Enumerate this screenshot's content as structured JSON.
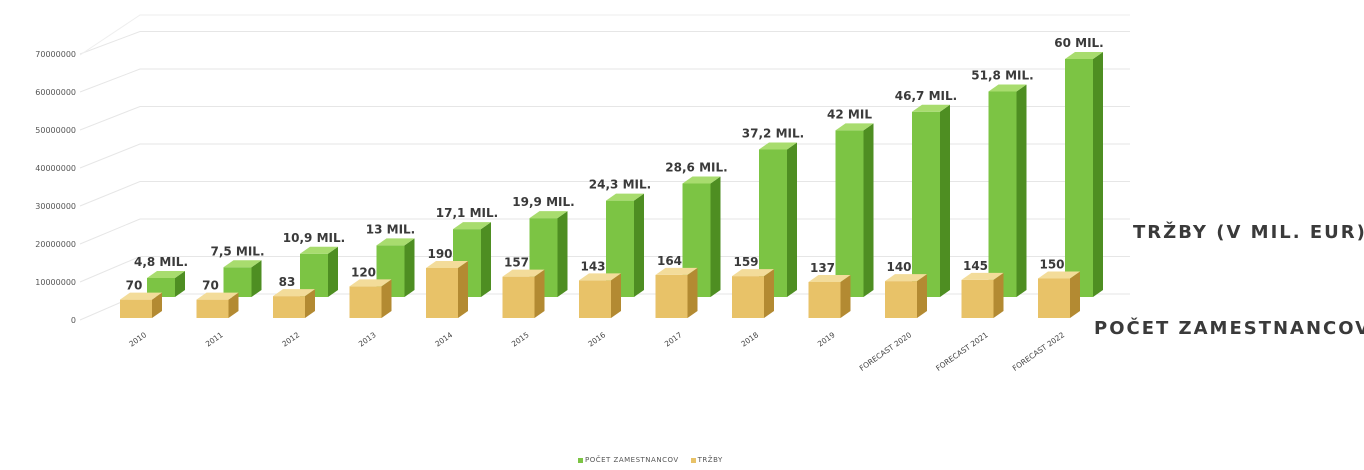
{
  "chart_data": {
    "type": "bar",
    "categories": [
      "2010",
      "2011",
      "2012",
      "2013",
      "2014",
      "2015",
      "2016",
      "2017",
      "2018",
      "2019",
      "FORECAST 2020",
      "FORECAST 2021",
      "FORECAST 2022"
    ],
    "series": [
      {
        "name": "POČET ZAMESTNANCOV",
        "values": [
          70,
          70,
          83,
          120,
          190,
          157,
          143,
          164,
          159,
          137,
          140,
          145,
          150
        ],
        "data_labels": [
          "70",
          "70",
          "83",
          "120",
          "190",
          "157",
          "143",
          "164",
          "159",
          "137",
          "140",
          "145",
          "150"
        ],
        "color": "#e8c268"
      },
      {
        "name": "TRŽBY",
        "values": [
          4.8,
          7.5,
          10.9,
          13,
          17.1,
          19.9,
          24.3,
          28.6,
          37.2,
          42,
          46.7,
          51.8,
          60
        ],
        "data_labels": [
          "4,8 MIL.",
          "7,5 MIL.",
          "10,9 MIL.",
          "13 MIL.",
          "17,1 MIL.",
          "19,9 MIL.",
          "24,3 MIL.",
          "28,6 MIL.",
          "37,2 MIL.",
          "42 MIL",
          "46,7 MIL.",
          "51,8 MIL.",
          "60 MIL."
        ],
        "color": "#7cc444"
      }
    ],
    "yticks": [
      "0",
      "10000000",
      "20000000",
      "30000000",
      "40000000",
      "50000000",
      "60000000",
      "70000000"
    ],
    "ylim": [
      0,
      70000000
    ],
    "grid": true,
    "legend_position": "bottom"
  },
  "series_labels": {
    "trzby": "TRŽBY (V MIL. EUR)",
    "pocet": "POČET ZAMESTNANCOV"
  },
  "legend": {
    "pocet": "POČET ZAMESTNANCOV",
    "trzby": "TRŽBY"
  }
}
